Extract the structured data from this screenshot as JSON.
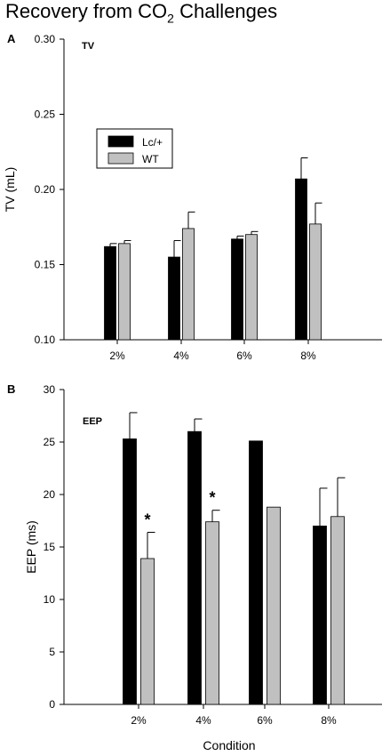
{
  "figure": {
    "title_main": "Recovery from CO",
    "title_sub": "2",
    "title_tail": " Challenges",
    "xlabel": "Condition"
  },
  "colors": {
    "lc": "#000000",
    "wt": "#c0c0c0",
    "axis": "#000000"
  },
  "chart_data": [
    {
      "type": "bar",
      "panel_letter": "A",
      "panel_label": "TV",
      "ylabel": "TV (mL)",
      "categories": [
        "2%",
        "4%",
        "6%",
        "8%"
      ],
      "ylim": [
        0.1,
        0.3
      ],
      "yticks": [
        "0.10",
        "0.15",
        "0.20",
        "0.25",
        "0.30"
      ],
      "ytick_values": [
        0.1,
        0.15,
        0.2,
        0.25,
        0.3
      ],
      "legend": {
        "placement": "top-left",
        "entries": [
          "Lc/+",
          "WT"
        ]
      },
      "series": [
        {
          "name": "Lc/+",
          "values": [
            0.162,
            0.155,
            0.167,
            0.207
          ],
          "errors": [
            0.002,
            0.011,
            0.002,
            0.014
          ]
        },
        {
          "name": "WT",
          "values": [
            0.164,
            0.174,
            0.17,
            0.177
          ],
          "errors": [
            0.002,
            0.011,
            0.002,
            0.014
          ]
        }
      ],
      "annotations": []
    },
    {
      "type": "bar",
      "panel_letter": "B",
      "panel_label": "EEP",
      "ylabel": "EEP (ms)",
      "categories": [
        "2%",
        "4%",
        "6%",
        "8%"
      ],
      "ylim": [
        0,
        30
      ],
      "yticks": [
        "0",
        "5",
        "10",
        "15",
        "20",
        "25",
        "30"
      ],
      "ytick_values": [
        0,
        5,
        10,
        15,
        20,
        25,
        30
      ],
      "series": [
        {
          "name": "Lc/+",
          "values": [
            25.3,
            26.0,
            25.1,
            17.0
          ],
          "errors": [
            2.5,
            1.2,
            0,
            3.6
          ]
        },
        {
          "name": "WT",
          "values": [
            13.9,
            17.4,
            18.8,
            17.9
          ],
          "errors": [
            2.5,
            1.1,
            0,
            3.7
          ]
        }
      ],
      "annotations": [
        {
          "text": "*",
          "category": "2%",
          "series": "WT"
        },
        {
          "text": "*",
          "category": "4%",
          "series": "WT"
        }
      ]
    }
  ]
}
